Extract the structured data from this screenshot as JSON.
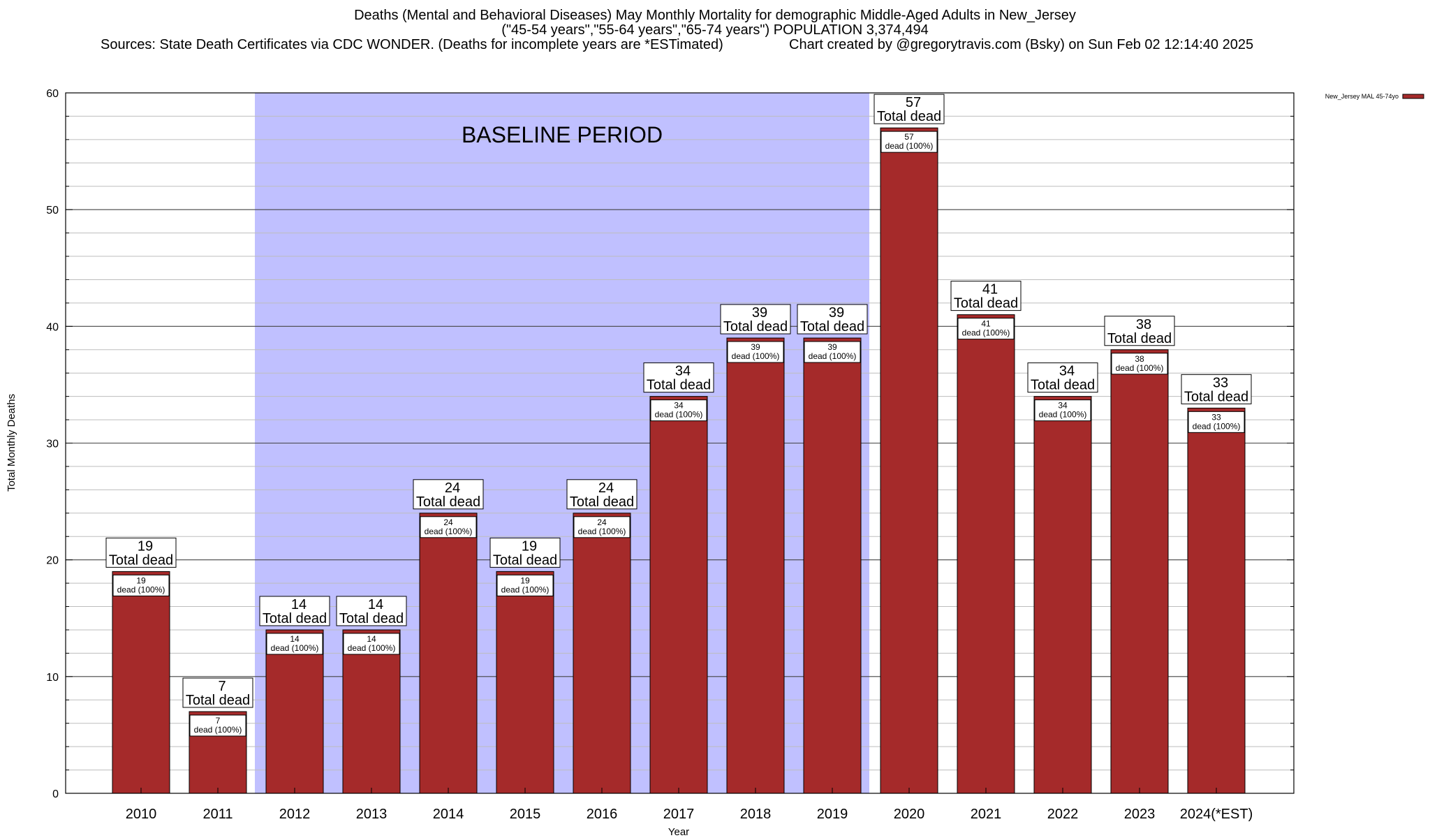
{
  "chart_data": {
    "type": "bar",
    "title": "Deaths (Mental and Behavioral Diseases) May Monthly Mortality for demographic Middle-Aged Adults in New_Jersey",
    "subtitle": "(\"45-54 years\",\"55-64 years\",\"65-74 years\") POPULATION 3,374,494",
    "sources": "Sources: State Death Certificates via CDC WONDER. (Deaths for incomplete years are *ESTimated)",
    "credit": "Chart created by @gregorytravis.com (Bsky) on Sun Feb 02 12:14:40 2025",
    "xlabel": "Year",
    "ylabel": "Total Monthly Deaths",
    "ylim": [
      0,
      60
    ],
    "yticks": [
      0,
      10,
      20,
      30,
      40,
      50,
      60
    ],
    "grid": true,
    "legend_position": "top-right",
    "categories": [
      "2010",
      "2011",
      "2012",
      "2013",
      "2014",
      "2015",
      "2016",
      "2017",
      "2018",
      "2019",
      "2020",
      "2021",
      "2022",
      "2023",
      "2024(*EST)"
    ],
    "series": [
      {
        "name": "New_Jersey MAL 45-74yo",
        "color": "#a52a2a",
        "values": [
          19,
          7,
          14,
          14,
          24,
          19,
          24,
          34,
          39,
          39,
          57,
          41,
          34,
          38,
          33
        ]
      }
    ],
    "total_label": "Total dead",
    "inner_label": "dead (100%)",
    "baseline": {
      "label": "BASELINE PERIOD",
      "start": "2012",
      "end": "2019",
      "color": "#c0c0ff"
    }
  }
}
